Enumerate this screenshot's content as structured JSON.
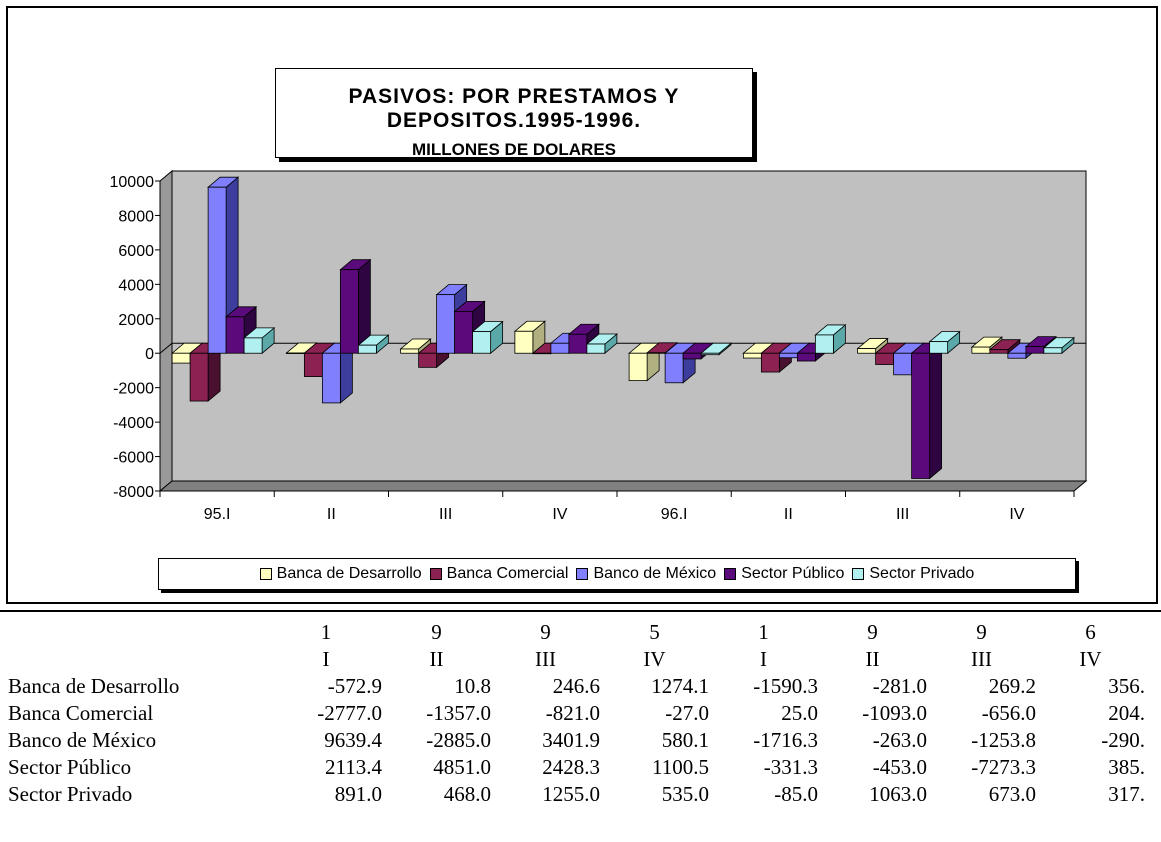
{
  "chart_data": {
    "type": "bar",
    "title": "PASIVOS: POR PRESTAMOS Y DEPOSITOS.1995-1996.",
    "subtitle": "MILLONES DE DOLARES",
    "categories": [
      "95.I",
      "II",
      "III",
      "IV",
      "96.I",
      "II",
      "III",
      "IV"
    ],
    "ylim": [
      -8000,
      10000
    ],
    "yticks": [
      10000,
      8000,
      6000,
      4000,
      2000,
      0,
      -2000,
      -4000,
      -6000,
      -8000
    ],
    "grid": false,
    "legend_position": "bottom",
    "style": "3d-clustered",
    "series": [
      {
        "name": "Banca de Desarrollo",
        "color": "#ffffc0",
        "side": "#b0b080",
        "values": [
          -572.9,
          10.8,
          246.6,
          1274.1,
          -1590.3,
          -281.0,
          269.2,
          356.0
        ]
      },
      {
        "name": "Banca Comercial",
        "color": "#8b2252",
        "side": "#4a1030",
        "values": [
          -2777.0,
          -1357.0,
          -821.0,
          -27.0,
          25.0,
          -1093.0,
          -656.0,
          204.0
        ]
      },
      {
        "name": "Banco de México",
        "color": "#8080ff",
        "side": "#3d3d9e",
        "values": [
          9639.4,
          -2885.0,
          3401.9,
          580.1,
          -1716.3,
          -263.0,
          -1253.8,
          -290.0
        ]
      },
      {
        "name": "Sector Público",
        "color": "#5a0a7a",
        "side": "#2e0540",
        "values": [
          2113.4,
          4851.0,
          2428.3,
          1100.5,
          -331.3,
          -453.0,
          -7273.3,
          385.0
        ]
      },
      {
        "name": "Sector Privado",
        "color": "#b0f0f0",
        "side": "#5aa8a8",
        "values": [
          891.0,
          468.0,
          1255.0,
          535.0,
          -85.0,
          1063.0,
          673.0,
          317.0
        ]
      }
    ]
  },
  "table": {
    "header_row1": [
      "1",
      "9",
      "9",
      "5",
      "1",
      "9",
      "9",
      "6"
    ],
    "header_row2": [
      "I",
      "II",
      "III",
      "IV",
      "I",
      "II",
      "III",
      "IV"
    ],
    "rows": [
      {
        "label": "Banca de Desarrollo",
        "values": [
          "-572.9",
          "10.8",
          "246.6",
          "1274.1",
          "-1590.3",
          "-281.0",
          "269.2",
          "356."
        ]
      },
      {
        "label": "Banca Comercial",
        "values": [
          "-2777.0",
          "-1357.0",
          "-821.0",
          "-27.0",
          "25.0",
          "-1093.0",
          "-656.0",
          "204."
        ]
      },
      {
        "label": "Banco de México",
        "values": [
          "9639.4",
          "-2885.0",
          "3401.9",
          "580.1",
          "-1716.3",
          "-263.0",
          "-1253.8",
          "-290."
        ]
      },
      {
        "label": "Sector Público",
        "values": [
          "2113.4",
          "4851.0",
          "2428.3",
          "1100.5",
          "-331.3",
          "-453.0",
          "-7273.3",
          "385."
        ]
      },
      {
        "label": "Sector Privado",
        "values": [
          "891.0",
          "468.0",
          "1255.0",
          "535.0",
          "-85.0",
          "1063.0",
          "673.0",
          "317."
        ]
      }
    ]
  }
}
